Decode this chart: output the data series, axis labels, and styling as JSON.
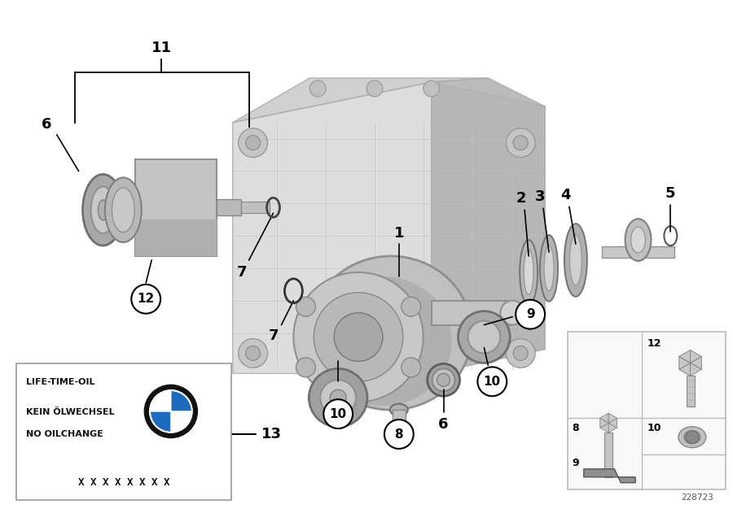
{
  "bg_color": "#ffffff",
  "fig_width": 9.0,
  "fig_height": 6.31,
  "dpi": 100,
  "diagram_number": "228723",
  "label_box_lines": [
    "LIFE-TIME-OIL",
    "KEIN ÖLWECHSEL",
    "NO OILCHANGE"
  ],
  "label_box_serial": "X X X X X X X X",
  "colors": {
    "body_light": "#d4d4d4",
    "body_mid": "#b8b8b8",
    "body_dark": "#989898",
    "body_shadow": "#808080",
    "edge": "#707070",
    "ring_light": "#c0c0c0",
    "ring_dark": "#909090",
    "black": "#000000",
    "white": "#ffffff",
    "box_bg": "#f8f8f8",
    "bmw_blue": "#1c6bbf",
    "bmw_black": "#111111"
  }
}
